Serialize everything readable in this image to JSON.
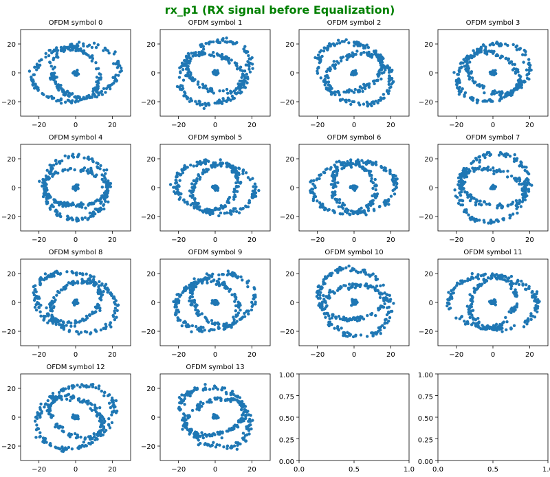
{
  "figure": {
    "title": "rx_p1 (RX signal before Equalization)",
    "title_color": "#008000",
    "marker_color": "#1f77b4"
  },
  "chart_data": [
    {
      "type": "scatter",
      "title": "OFDM symbol 0",
      "xlim": [
        -30,
        30
      ],
      "ylim": [
        -30,
        30
      ],
      "xticks": [
        -20,
        0,
        20
      ],
      "yticks": [
        20,
        0,
        -20
      ],
      "pattern": {
        "inner_radius": 17,
        "outer_radius": 24,
        "rotation": 0.35,
        "seed": 11
      }
    },
    {
      "type": "scatter",
      "title": "OFDM symbol 1",
      "xlim": [
        -30,
        30
      ],
      "ylim": [
        -30,
        30
      ],
      "xticks": [
        -20,
        0,
        20
      ],
      "yticks": [
        20,
        0,
        -20
      ],
      "pattern": {
        "inner_radius": 16,
        "outer_radius": 23,
        "rotation": 1.1,
        "seed": 23
      }
    },
    {
      "type": "scatter",
      "title": "OFDM symbol 2",
      "xlim": [
        -30,
        30
      ],
      "ylim": [
        -30,
        30
      ],
      "xticks": [
        -20,
        0,
        20
      ],
      "yticks": [
        20,
        0,
        -20
      ],
      "pattern": {
        "inner_radius": 16,
        "outer_radius": 23,
        "rotation": 2.2,
        "seed": 37
      }
    },
    {
      "type": "scatter",
      "title": "OFDM symbol 3",
      "xlim": [
        -30,
        30
      ],
      "ylim": [
        -30,
        30
      ],
      "xticks": [
        -20,
        0,
        20
      ],
      "yticks": [
        20,
        0,
        -20
      ],
      "pattern": {
        "inner_radius": 16,
        "outer_radius": 22,
        "rotation": 0.8,
        "seed": 41
      }
    },
    {
      "type": "scatter",
      "title": "OFDM symbol 4",
      "xlim": [
        -30,
        30
      ],
      "ylim": [
        -30,
        30
      ],
      "xticks": [
        -20,
        0,
        20
      ],
      "yticks": [
        20,
        0,
        -20
      ],
      "pattern": {
        "inner_radius": 17,
        "outer_radius": 22,
        "rotation": 1.6,
        "seed": 53
      }
    },
    {
      "type": "scatter",
      "title": "OFDM symbol 5",
      "xlim": [
        -30,
        30
      ],
      "ylim": [
        -30,
        30
      ],
      "xticks": [
        -20,
        0,
        20
      ],
      "yticks": [
        20,
        0,
        -20
      ],
      "pattern": {
        "inner_radius": 16,
        "outer_radius": 22,
        "rotation": 2.8,
        "seed": 67
      }
    },
    {
      "type": "scatter",
      "title": "OFDM symbol 6",
      "xlim": [
        -30,
        30
      ],
      "ylim": [
        -30,
        30
      ],
      "xticks": [
        -20,
        0,
        20
      ],
      "yticks": [
        20,
        0,
        -20
      ],
      "pattern": {
        "inner_radius": 16,
        "outer_radius": 23,
        "rotation": 0.2,
        "seed": 71
      }
    },
    {
      "type": "scatter",
      "title": "OFDM symbol 7",
      "xlim": [
        -30,
        30
      ],
      "ylim": [
        -30,
        30
      ],
      "xticks": [
        -20,
        0,
        20
      ],
      "yticks": [
        20,
        0,
        -20
      ],
      "pattern": {
        "inner_radius": 17,
        "outer_radius": 24,
        "rotation": 1.3,
        "seed": 83
      }
    },
    {
      "type": "scatter",
      "title": "OFDM symbol 8",
      "xlim": [
        -30,
        30
      ],
      "ylim": [
        -30,
        30
      ],
      "xticks": [
        -20,
        0,
        20
      ],
      "yticks": [
        20,
        0,
        -20
      ],
      "pattern": {
        "inner_radius": 16,
        "outer_radius": 24,
        "rotation": 2.5,
        "seed": 97
      }
    },
    {
      "type": "scatter",
      "title": "OFDM symbol 9",
      "xlim": [
        -30,
        30
      ],
      "ylim": [
        -30,
        30
      ],
      "xticks": [
        -20,
        0,
        20
      ],
      "yticks": [
        20,
        0,
        -20
      ],
      "pattern": {
        "inner_radius": 16,
        "outer_radius": 23,
        "rotation": 0.6,
        "seed": 101
      }
    },
    {
      "type": "scatter",
      "title": "OFDM symbol 10",
      "xlim": [
        -30,
        30
      ],
      "ylim": [
        -30,
        30
      ],
      "xticks": [
        -20,
        0,
        20
      ],
      "yticks": [
        20,
        0,
        -20
      ],
      "pattern": {
        "inner_radius": 16,
        "outer_radius": 24,
        "rotation": 1.9,
        "seed": 113
      }
    },
    {
      "type": "scatter",
      "title": "OFDM symbol 11",
      "xlim": [
        -30,
        30
      ],
      "ylim": [
        -30,
        30
      ],
      "xticks": [
        -20,
        0,
        20
      ],
      "yticks": [
        20,
        0,
        -20
      ],
      "pattern": {
        "inner_radius": 17,
        "outer_radius": 24,
        "rotation": 3.0,
        "seed": 127
      }
    },
    {
      "type": "scatter",
      "title": "OFDM symbol 12",
      "xlim": [
        -30,
        30
      ],
      "ylim": [
        -30,
        30
      ],
      "xticks": [
        -20,
        0,
        20
      ],
      "yticks": [
        20,
        0,
        -20
      ],
      "pattern": {
        "inner_radius": 16,
        "outer_radius": 24,
        "rotation": 0.9,
        "seed": 131
      }
    },
    {
      "type": "scatter",
      "title": "OFDM symbol 13",
      "xlim": [
        -30,
        30
      ],
      "ylim": [
        -30,
        30
      ],
      "xticks": [
        -20,
        0,
        20
      ],
      "yticks": [
        20,
        0,
        -20
      ],
      "pattern": {
        "inner_radius": 16,
        "outer_radius": 22,
        "rotation": 2.1,
        "seed": 139
      }
    },
    {
      "type": "empty",
      "title": "",
      "xlim": [
        0,
        1
      ],
      "ylim": [
        0,
        1
      ],
      "xticks": [
        "0.0",
        "0.5",
        "1.0"
      ],
      "yticks": [
        "1.00",
        "0.75",
        "0.50",
        "0.25",
        "0.00"
      ]
    },
    {
      "type": "empty",
      "title": "",
      "xlim": [
        0,
        1
      ],
      "ylim": [
        0,
        1
      ],
      "xticks": [
        "0.0",
        "0.5",
        "1.0"
      ],
      "yticks": [
        "1.00",
        "0.75",
        "0.50",
        "0.25",
        "0.00"
      ]
    }
  ]
}
